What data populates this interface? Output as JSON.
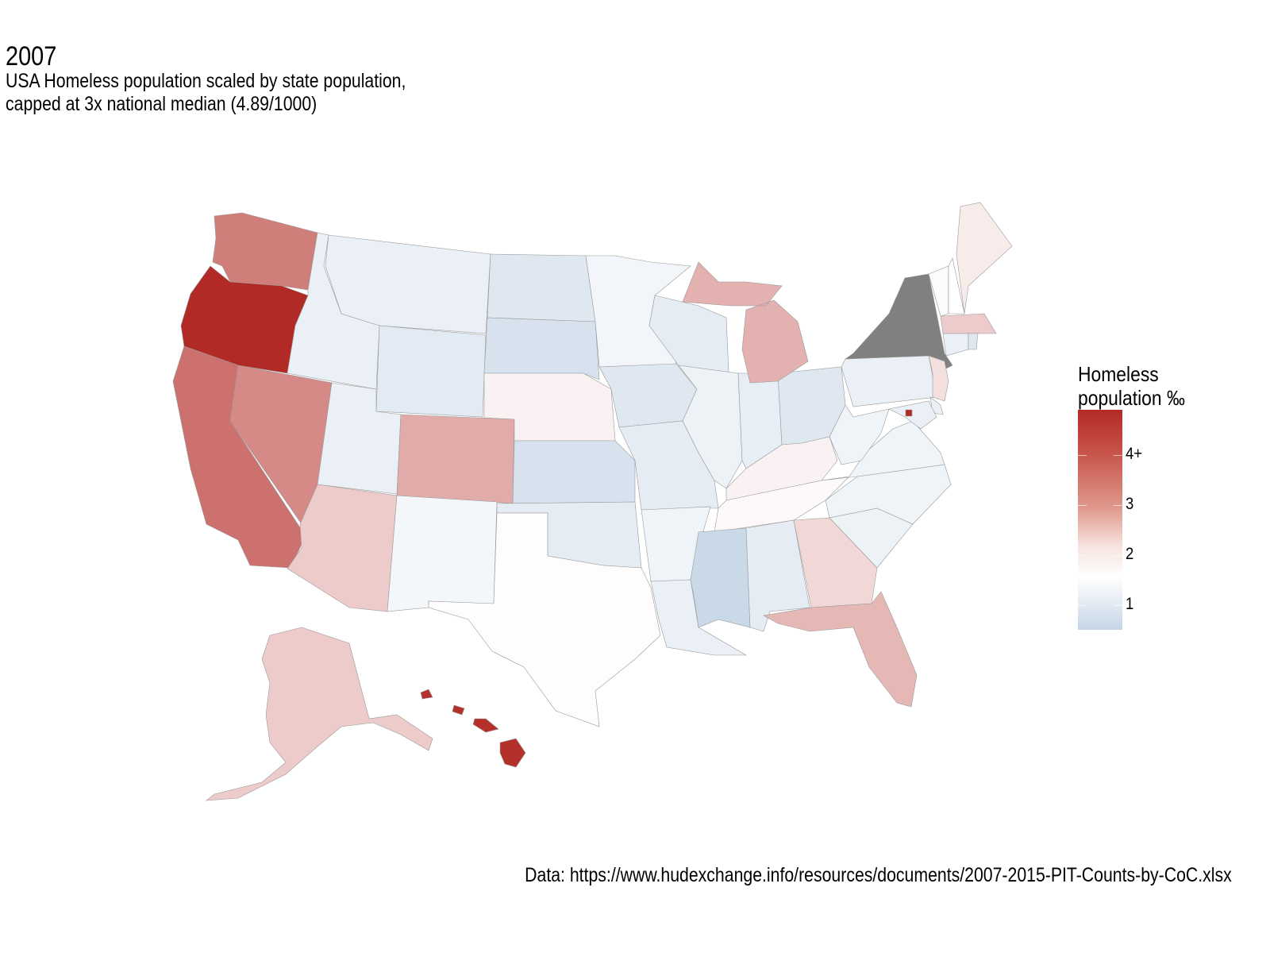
{
  "title": "2007",
  "subtitle_lines": [
    "USA Homeless population scaled by state population,",
    "capped at 3x national median (4.89/1000)"
  ],
  "caption": "Data: https://www.hudexchange.info/resources/documents/2007-2015-PIT-Counts-by-CoC.xlsx",
  "legend": {
    "title_lines": [
      "Homeless",
      "population ‰"
    ],
    "ticks": [
      "4+",
      "3",
      "2",
      "1"
    ],
    "tick_values": [
      4,
      3,
      2,
      1
    ],
    "range": [
      0.5,
      4.89
    ],
    "colors": {
      "low": "#c5d5e6",
      "mid": "#ffffff",
      "high": "#b22a25",
      "missing": "#808080"
    }
  },
  "chart_data": {
    "type": "choropleth",
    "title": "2007",
    "metric": "Homeless population per 1000",
    "cap": 4.89,
    "states": {
      "WA": 3.6,
      "OR": 4.89,
      "CA": 3.8,
      "NV": 3.4,
      "ID": 1.2,
      "MT": 1.2,
      "WY": 1.05,
      "UT": 1.2,
      "CO": 2.9,
      "AZ": 2.4,
      "NM": 1.4,
      "ND": 1.0,
      "SD": 0.85,
      "NE": 1.8,
      "KS": 0.85,
      "OK": 1.1,
      "TX": 1.65,
      "MN": 1.35,
      "IA": 1.0,
      "MO": 1.1,
      "AR": 1.3,
      "LA": 1.2,
      "WI": 1.1,
      "IL": 1.25,
      "IN": 1.15,
      "OH": 1.0,
      "MI": 2.8,
      "KY": 1.8,
      "TN": 1.7,
      "MS": 0.6,
      "AL": 1.1,
      "GA": 2.2,
      "FL": 2.7,
      "SC": 1.25,
      "NC": 1.3,
      "VA": 1.3,
      "WV": 1.3,
      "PA": 1.2,
      "NY": null,
      "VT": 1.5,
      "NH": 1.6,
      "ME": 1.9,
      "MA": 2.4,
      "CT": 1.2,
      "RI": 1.0,
      "NJ": 2.1,
      "DE": 1.2,
      "MD": 1.2,
      "DC": 4.89,
      "AK": 2.4,
      "HI": 4.8
    }
  }
}
